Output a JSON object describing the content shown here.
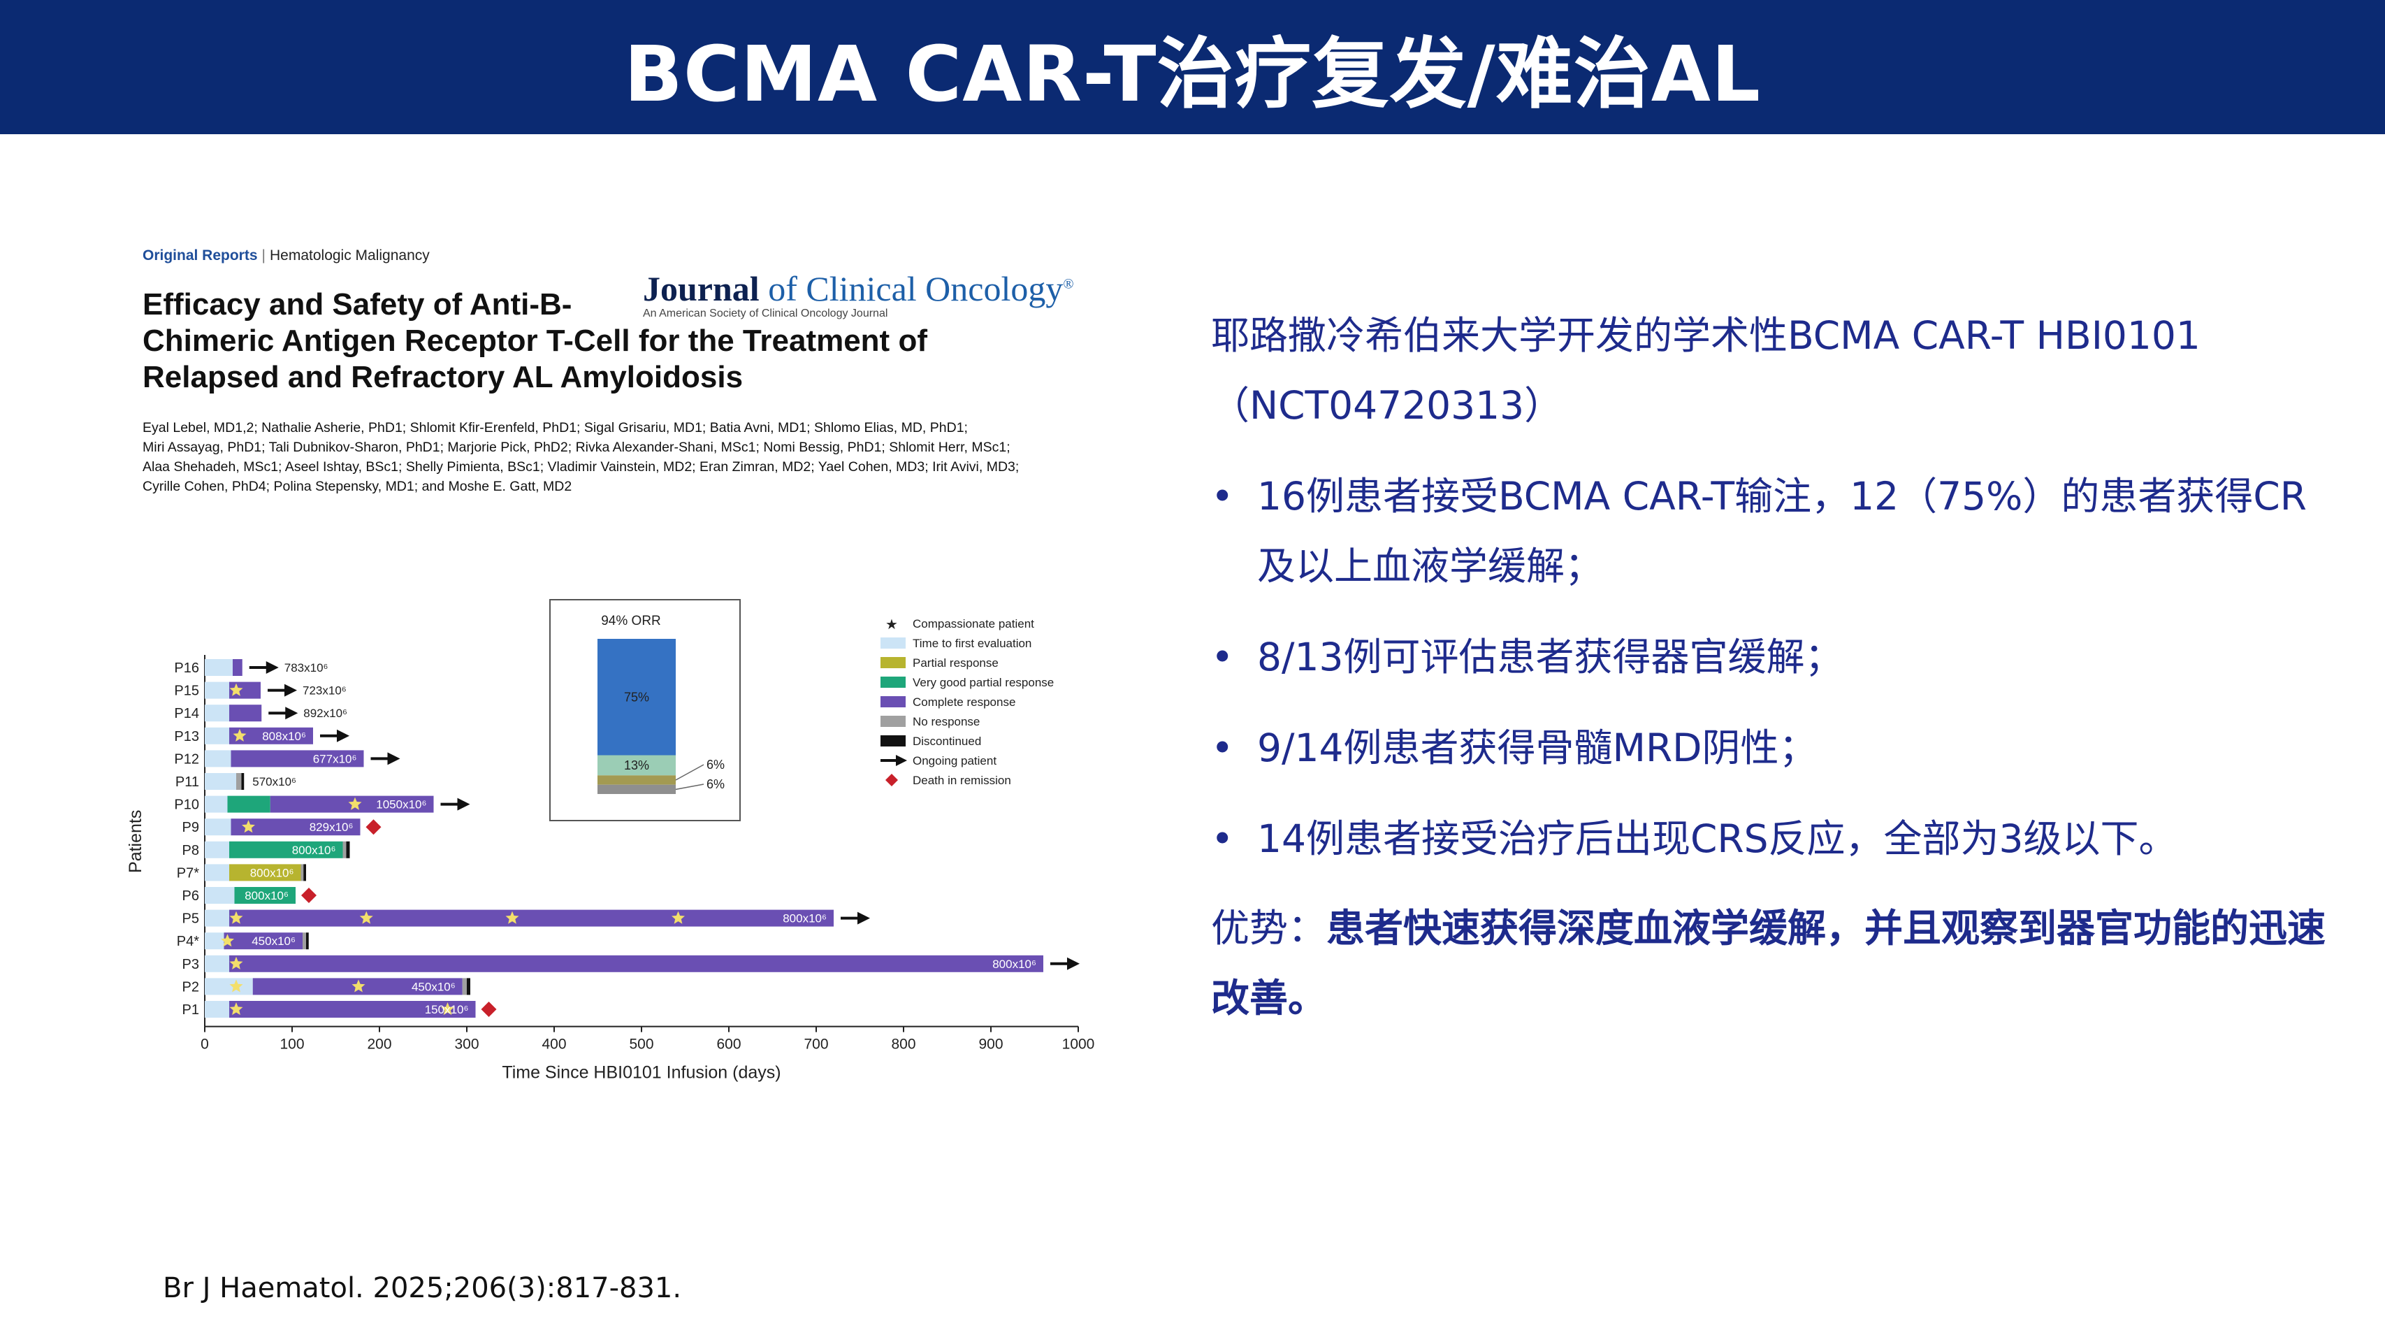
{
  "header": {
    "title": "BCMA CAR-T治疗复发/难治AL"
  },
  "paper": {
    "kicker_section": "Original Reports",
    "kicker_category": "Hematologic Malignancy",
    "title_lines": [
      "Efficacy and Safety of Anti-B-",
      "Chimeric Antigen Receptor T-Cell for the Treatment of",
      "Relapsed and Refractory AL Amyloidosis"
    ],
    "journal_name_part1": "Journal",
    "journal_name_part2": "of Clinical Oncology",
    "journal_tagline": "An American Society of Clinical Oncology Journal",
    "authors_lines": [
      "Eyal Lebel, MD1,2; Nathalie Asherie, PhD1; Shlomit Kfir-Erenfeld, PhD1; Sigal Grisariu, MD1; Batia Avni, MD1; Shlomo Elias, MD, PhD1;",
      "Miri Assayag, PhD1; Tali Dubnikov-Sharon, PhD1; Marjorie Pick, PhD2; Rivka Alexander-Shani, MSc1; Nomi Bessig, PhD1; Shlomit Herr, MSc1;",
      "Alaa Shehadeh, MSc1; Aseel Ishtay, BSc1; Shelly Pimienta, BSc1; Vladimir Vainstein, MD2; Eran Zimran, MD2; Yael Cohen, MD3; Irit Avivi, MD3;",
      "Cyrille Cohen, PhD4; Polina Stepensky, MD1; and Moshe E. Gatt, MD2"
    ]
  },
  "chart_data": [
    {
      "type": "bar",
      "subtype": "swimmer",
      "xlabel": "Time Since HBI0101 Infusion (days)",
      "ylabel": "Patients",
      "xlim": [
        0,
        1000
      ],
      "xticks": [
        0,
        100,
        200,
        300,
        400,
        500,
        600,
        700,
        800,
        900,
        1000
      ],
      "legend_position": "top-right",
      "legend": [
        {
          "key": "compassionate",
          "label": "Compassionate patient",
          "color": "#222222",
          "symbol": "star"
        },
        {
          "key": "first_eval",
          "label": "Time to first evaluation",
          "color": "#cce4f6",
          "symbol": "rect"
        },
        {
          "key": "pr",
          "label": "Partial response",
          "color": "#b7b42f",
          "symbol": "rect"
        },
        {
          "key": "vgpr",
          "label": "Very good partial response",
          "color": "#1ea67a",
          "symbol": "rect"
        },
        {
          "key": "cr",
          "label": "Complete response",
          "color": "#6a4fb3",
          "symbol": "rect"
        },
        {
          "key": "nr",
          "label": "No response",
          "color": "#a0a0a0",
          "symbol": "rect"
        },
        {
          "key": "disc",
          "label": "Discontinued",
          "color": "#111111",
          "symbol": "rect"
        },
        {
          "key": "ongoing",
          "label": "Ongoing patient",
          "color": "#111111",
          "symbol": "arrow"
        },
        {
          "key": "death",
          "label": "Death in remission",
          "color": "#c8202a",
          "symbol": "diamond"
        }
      ],
      "patients": [
        {
          "id": "P16",
          "segments": [
            {
              "s": "first_eval",
              "from": 0,
              "to": 32
            },
            {
              "s": "cr",
              "from": 32,
              "to": 43
            }
          ],
          "label": "783x10⁶",
          "end": "ongoing",
          "stars": []
        },
        {
          "id": "P15",
          "segments": [
            {
              "s": "first_eval",
              "from": 0,
              "to": 28
            },
            {
              "s": "cr",
              "from": 28,
              "to": 64
            }
          ],
          "label": "723x10⁶",
          "end": "ongoing",
          "stars": [
            36
          ]
        },
        {
          "id": "P14",
          "segments": [
            {
              "s": "first_eval",
              "from": 0,
              "to": 28
            },
            {
              "s": "cr",
              "from": 28,
              "to": 65
            }
          ],
          "label": "892x10⁶",
          "end": "ongoing",
          "stars": []
        },
        {
          "id": "P13",
          "segments": [
            {
              "s": "first_eval",
              "from": 0,
              "to": 28
            },
            {
              "s": "cr",
              "from": 28,
              "to": 124
            }
          ],
          "label": "808x10⁶",
          "label_inside": true,
          "end": "ongoing",
          "stars": [
            40
          ]
        },
        {
          "id": "P12",
          "segments": [
            {
              "s": "first_eval",
              "from": 0,
              "to": 30
            },
            {
              "s": "cr",
              "from": 30,
              "to": 182
            }
          ],
          "label": "677x10⁶",
          "label_inside": true,
          "end": "ongoing",
          "stars": []
        },
        {
          "id": "P11",
          "segments": [
            {
              "s": "first_eval",
              "from": 0,
              "to": 36
            },
            {
              "s": "nr",
              "from": 36,
              "to": 42
            },
            {
              "s": "disc",
              "from": 42,
              "to": 45
            }
          ],
          "label": "570x10⁶",
          "end": "",
          "stars": []
        },
        {
          "id": "P10",
          "segments": [
            {
              "s": "first_eval",
              "from": 0,
              "to": 26
            },
            {
              "s": "vgpr",
              "from": 26,
              "to": 75
            },
            {
              "s": "cr",
              "from": 75,
              "to": 262
            }
          ],
          "label": "1050x10⁶",
          "label_inside": true,
          "end": "ongoing",
          "stars": [
            172
          ]
        },
        {
          "id": "P9",
          "segments": [
            {
              "s": "first_eval",
              "from": 0,
              "to": 30
            },
            {
              "s": "cr",
              "from": 30,
              "to": 178
            }
          ],
          "label": "829x10⁶",
          "label_inside": true,
          "end": "death",
          "stars": [
            50
          ]
        },
        {
          "id": "P8",
          "segments": [
            {
              "s": "first_eval",
              "from": 0,
              "to": 28
            },
            {
              "s": "vgpr",
              "from": 28,
              "to": 158
            },
            {
              "s": "nr",
              "from": 158,
              "to": 162
            },
            {
              "s": "disc",
              "from": 162,
              "to": 166
            }
          ],
          "label": "800x10⁶",
          "label_inside": true,
          "end": "",
          "stars": []
        },
        {
          "id": "P7*",
          "segments": [
            {
              "s": "first_eval",
              "from": 0,
              "to": 28
            },
            {
              "s": "pr",
              "from": 28,
              "to": 110
            },
            {
              "s": "nr",
              "from": 110,
              "to": 113
            },
            {
              "s": "disc",
              "from": 113,
              "to": 116
            }
          ],
          "label": "800x10⁶",
          "label_inside": true,
          "end": "",
          "stars": []
        },
        {
          "id": "P6",
          "segments": [
            {
              "s": "first_eval",
              "from": 0,
              "to": 34
            },
            {
              "s": "vgpr",
              "from": 34,
              "to": 104
            }
          ],
          "label": "800x10⁶",
          "label_inside": true,
          "end": "death",
          "stars": []
        },
        {
          "id": "P5",
          "segments": [
            {
              "s": "first_eval",
              "from": 0,
              "to": 28
            },
            {
              "s": "cr",
              "from": 28,
              "to": 720
            }
          ],
          "label": "800x10⁶",
          "label_inside": true,
          "end": "ongoing",
          "stars": [
            36,
            185,
            352,
            542
          ]
        },
        {
          "id": "P4*",
          "segments": [
            {
              "s": "first_eval",
              "from": 0,
              "to": 22
            },
            {
              "s": "cr",
              "from": 22,
              "to": 112
            },
            {
              "s": "nr",
              "from": 112,
              "to": 116
            },
            {
              "s": "disc",
              "from": 116,
              "to": 119
            }
          ],
          "label": "450x10⁶",
          "label_inside": true,
          "end": "",
          "stars": [
            26
          ]
        },
        {
          "id": "P3",
          "segments": [
            {
              "s": "first_eval",
              "from": 0,
              "to": 28
            },
            {
              "s": "cr",
              "from": 28,
              "to": 960
            }
          ],
          "label": "800x10⁶",
          "label_inside": true,
          "end": "ongoing",
          "stars": [
            36
          ]
        },
        {
          "id": "P2",
          "segments": [
            {
              "s": "first_eval",
              "from": 0,
              "to": 55
            },
            {
              "s": "cr",
              "from": 55,
              "to": 295
            },
            {
              "s": "nr",
              "from": 295,
              "to": 300
            },
            {
              "s": "disc",
              "from": 300,
              "to": 304
            }
          ],
          "label": "450x10⁶",
          "label_inside": true,
          "end": "",
          "stars": [
            36,
            176
          ]
        },
        {
          "id": "P1",
          "segments": [
            {
              "s": "first_eval",
              "from": 0,
              "to": 28
            },
            {
              "s": "cr",
              "from": 28,
              "to": 310
            }
          ],
          "label": "150x10⁶",
          "label_inside": true,
          "end": "death",
          "stars": [
            36,
            278
          ]
        }
      ]
    },
    {
      "type": "bar",
      "subtype": "stacked-100",
      "title": "94% ORR",
      "series": [
        {
          "name": "Complete response",
          "values": [
            75
          ],
          "label": "75%"
        },
        {
          "name": "Very good partial response",
          "values": [
            13
          ],
          "label": "13%"
        },
        {
          "name": "Partial response",
          "values": [
            6
          ],
          "label": "6%"
        },
        {
          "name": "No response",
          "values": [
            6
          ],
          "label": "6%"
        }
      ]
    }
  ],
  "content": {
    "intro": "耶路撒冷希伯来大学开发的学术性BCMA CAR-T HBI0101 （NCT04720313）",
    "bullet_char": "•",
    "bullets": [
      "16例患者接受BCMA CAR-T输注，12（75%）的患者获得CR及以上血液学缓解；",
      "8/13例可评估患者获得器官缓解；",
      "9/14例患者获得骨髓MRD阴性；",
      "14例患者接受治疗后出现CRS反应，全部为3级以下。"
    ],
    "advantage_label": "优势：",
    "advantage_text": "患者快速获得深度血液学缓解，并且观察到器官功能的迅速改善。"
  },
  "citation": "Br J Haematol. 2025;206(3):817-831."
}
